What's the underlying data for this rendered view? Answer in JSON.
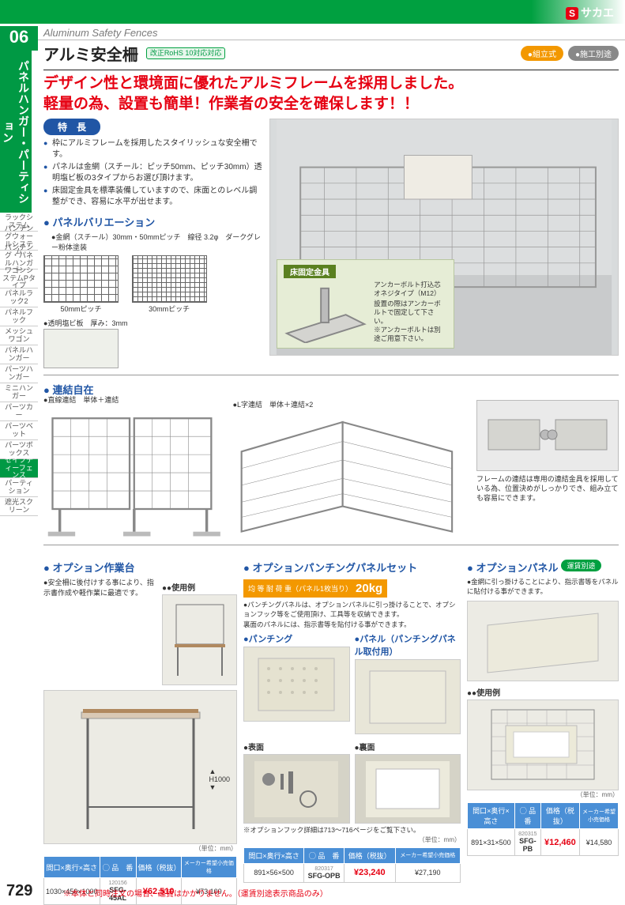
{
  "brand": {
    "s": "S",
    "name": "サカエ"
  },
  "breadcrumb": "Aluminum Safety Fences",
  "section_num": "06",
  "category_vertical": "パネルハンガー・パーティション",
  "title": "アルミ安全柵",
  "rohs": "改正RoHS 10対応対応",
  "chip_assembly": "●組立式",
  "chip_install": "●施工別途",
  "headline1": "デザイン性と環境面に優れたアルミフレームを採用しました。",
  "headline2": "軽量の為、設置も簡単！作業者の安全を確保します！！",
  "features_label": "特　長",
  "features": [
    "枠にアルミフレームを採用したスタイリッシュな安全柵です。",
    "パネルは金網（スチール：ピッチ50mm、ピッチ30mm）透明塩ビ板の3タイプからお選び頂けます。",
    "床固定金具を標準装備していますので、床面とのレベル調整ができ、容易に水平が出せます。"
  ],
  "panel_var_head": "パネルバリエーション",
  "panel_var_text": "金網（スチール）30mm・50mmピッチ　線径 3.2φ　ダークグレー粉体塗装",
  "sw1_cap": "50mmピッチ",
  "sw2_cap": "30mmピッチ",
  "vinyl_text": "透明塩ビ板　厚み：3mm",
  "anchor_title": "床固定金具",
  "anchor_sub1": "アンカーボルト打込芯オネジタイプ（M12）",
  "anchor_sub2": "設置の際はアンカーボルトで固定して下さい。",
  "anchor_sub3": "※アンカーボルトは別途ご用意下さい。",
  "connect_head": "連結自在",
  "connect1_t": "●直線連結　単体＋連結",
  "connect2_t": "●L字連結　単体＋連結×2",
  "connect_detail": "フレームの連結は専用の連結金具を採用している為、位置決めがしっかりでき、組み立ても容易にできます。",
  "opt1_head": "オプション作業台",
  "opt1_text": "安全柵に後付けする事により、指示書作成や軽作業に最適です。",
  "use_lbl": "●使用例",
  "h1000": "H1000",
  "opt2_head": "オプションパンチングパネルセット",
  "load_lbl": "均 等 耐 荷 重（パネル1枚当り）",
  "load_kg": "20kg",
  "opt2_text1": "パンチングパネルは、オプションパネルに引っ掛けることで、オプションフック等をご使用頂け、工具等を収納できます。",
  "opt2_text2": "裏面のパネルには、指示書等を貼付ける事ができます。",
  "punch_lbl": "パンチング",
  "panel_lbl": "パネル（パンチングパネル取付用）",
  "front_lbl": "表面",
  "back_lbl": "裏面",
  "hook_note": "※オプションフック詳細は713〜716ページをご覧下さい。",
  "opt3_head": "オプションパネル",
  "ship_sep": "運賃別途",
  "opt3_text": "金網に引っ掛けることにより、指示書等をパネルに貼付ける事ができます。",
  "use_lbl2": "●使用例",
  "unit_mm": "（単位：mm）",
  "th_dim": "間口×奥行×高さ",
  "th_part": "◯ 品　番",
  "th_price": "価格（税抜）",
  "th_retail": "メーカー希望小売価格",
  "t1": {
    "dim": "1030×450×1000",
    "code_s": "120156",
    "code": "SFG-45AL",
    "price": "¥62,510",
    "retail": "¥73,100"
  },
  "t2": {
    "dim": "891×56×500",
    "code_s": "820317",
    "code": "SFG-OPB",
    "price": "¥23,240",
    "retail": "¥27,190"
  },
  "t3": {
    "dim": "891×31×500",
    "code_s": "820315",
    "code": "SFG-PB",
    "price": "¥12,460",
    "retail": "¥14,580"
  },
  "page_num": "729",
  "foot_note": "※本体と同時注文の場合、運賃はかかりません。（運賃別途表示商品のみ）",
  "side_tabs": [
    "ラックシステム",
    "パンチングウォールシステム",
    "パンチング・パネルハンガー",
    "ワゴンシステムPタイプ",
    "パネルラック2",
    "パネルフック",
    "メッシュワゴン",
    "パネルハンガー",
    "パーツハンガー",
    "ミニハンガー",
    "パーツカー",
    "パーツベット",
    "パーツボックス",
    "セイフティーフェンス",
    "パーティション",
    "遮光スクリーン"
  ],
  "active_tab_index": 13,
  "colors": {
    "green": "#009944",
    "red": "#e60012",
    "blue": "#2156a5",
    "orange": "#f39800",
    "thblue": "#4a8fd6"
  }
}
